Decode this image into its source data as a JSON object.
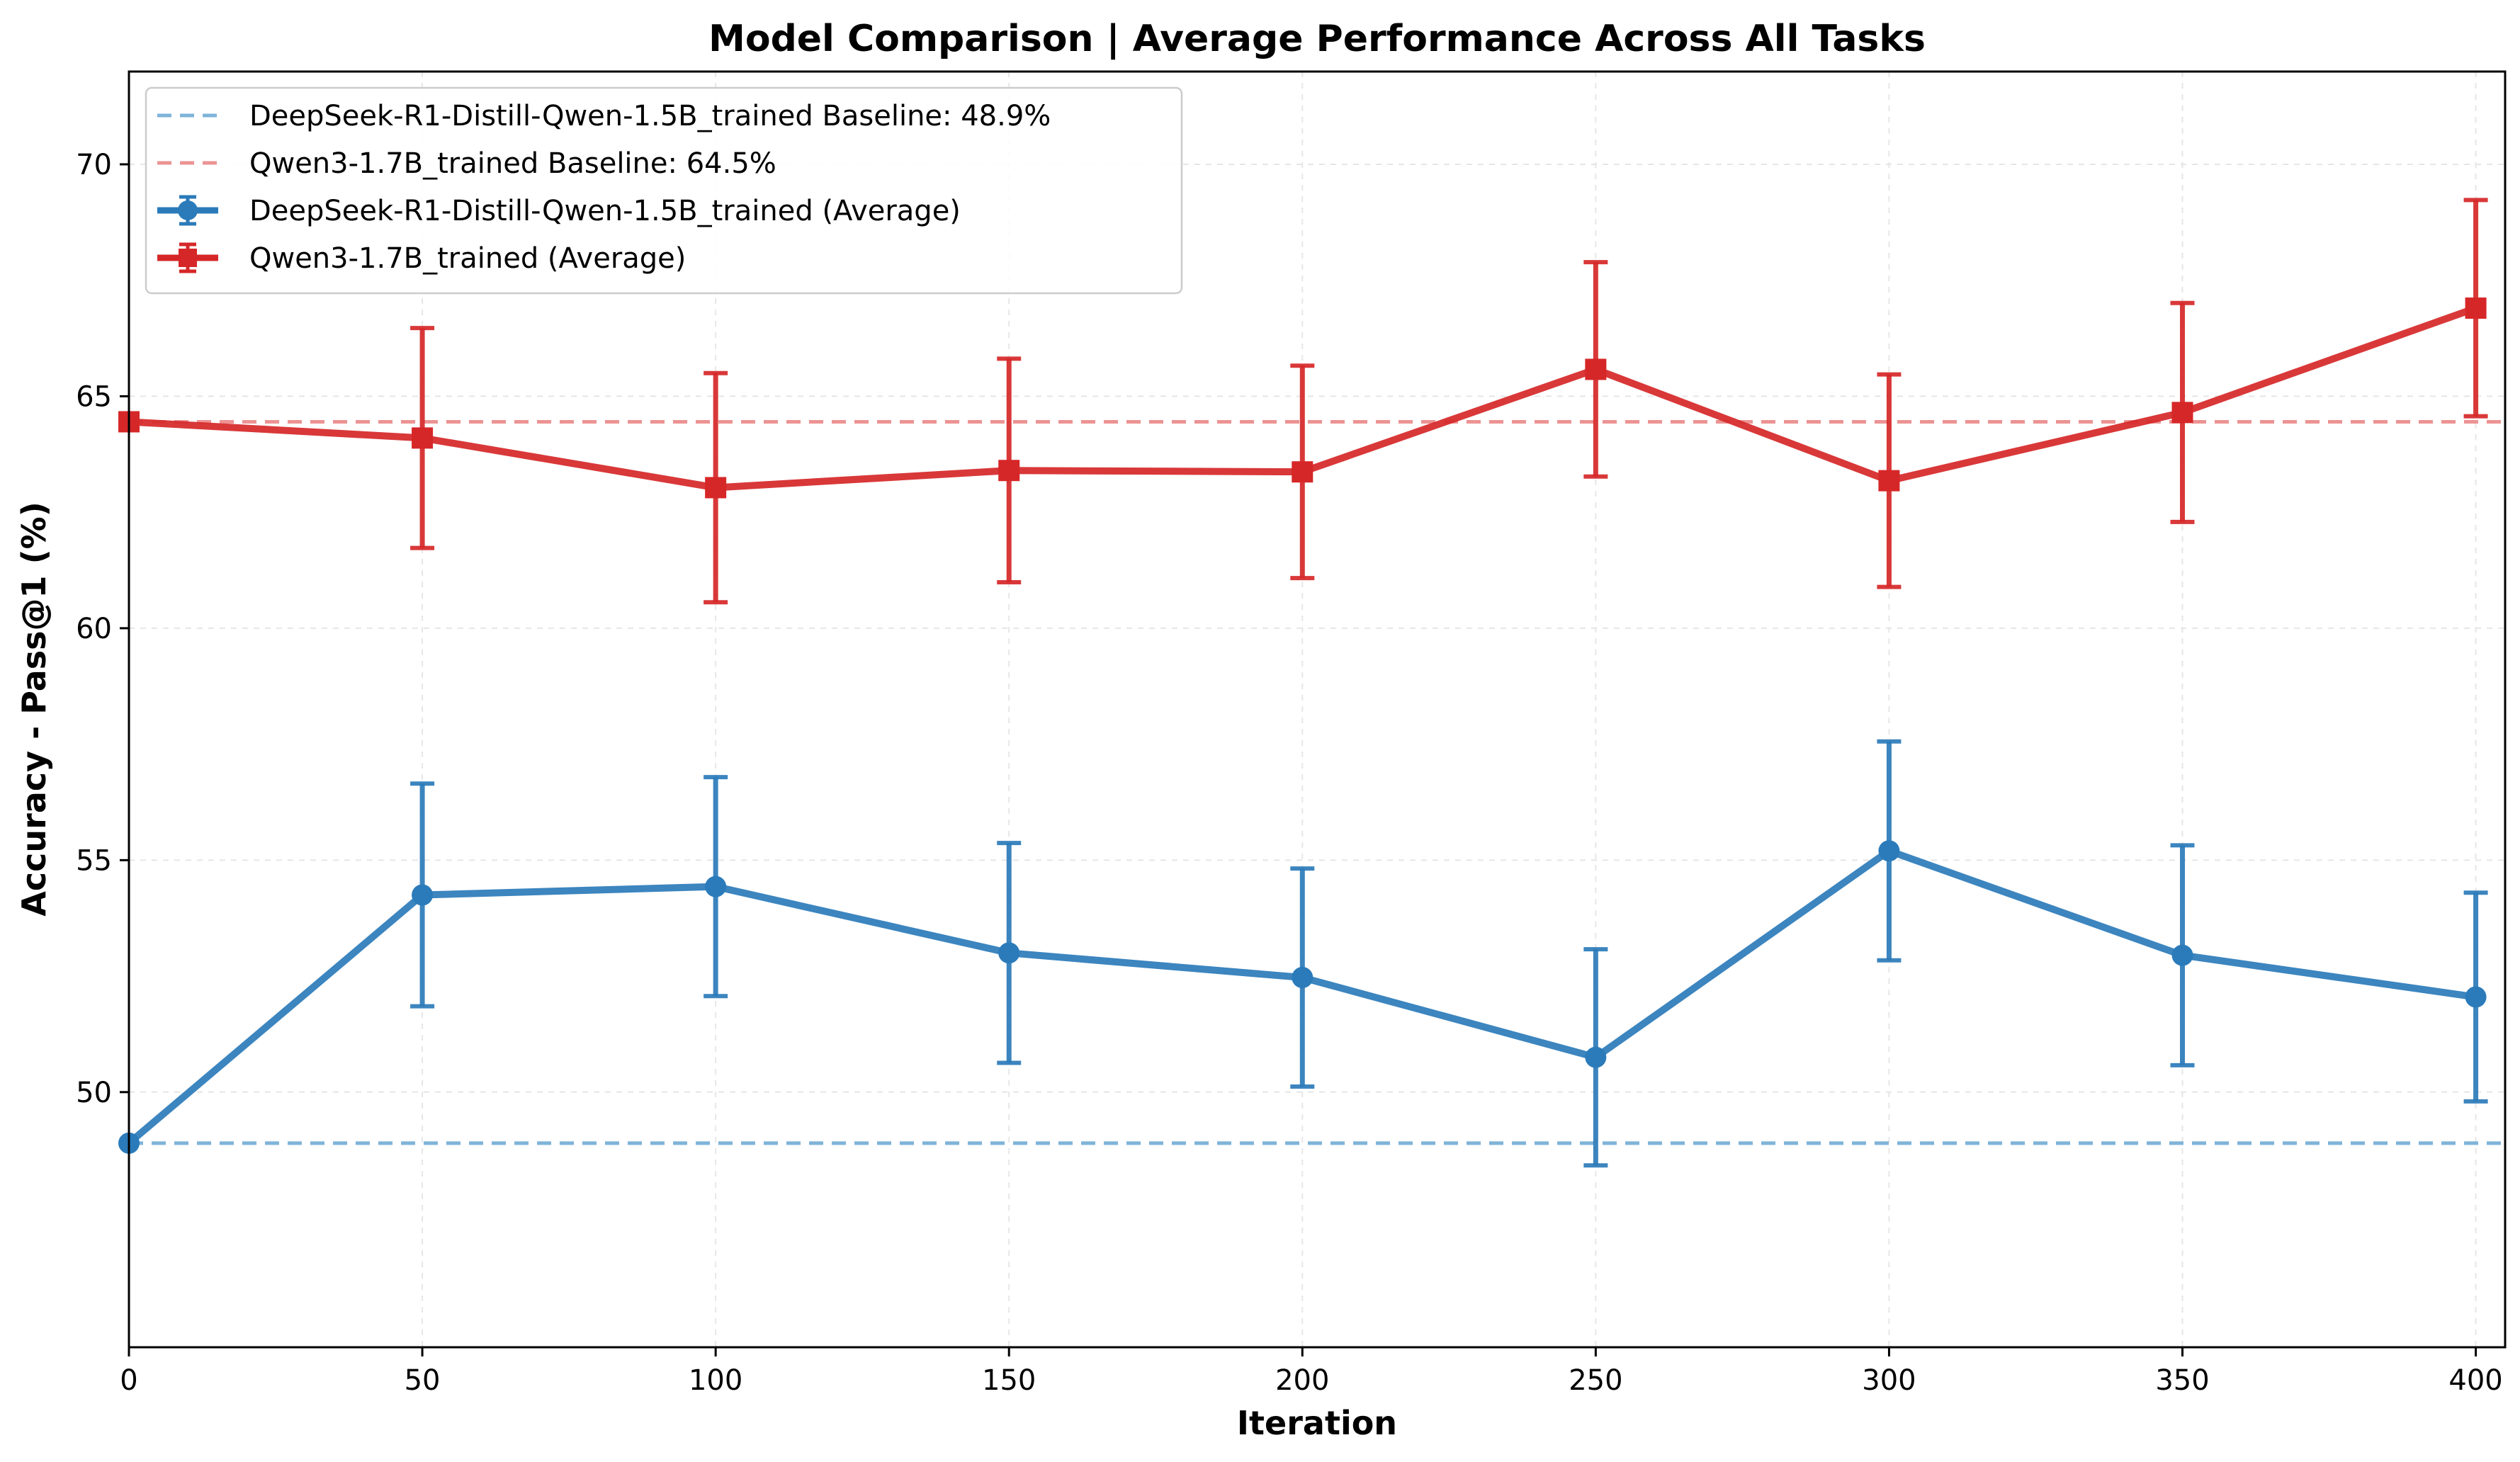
{
  "chart_data": {
    "type": "line",
    "title": "Model Comparison | Average Performance Across All Tasks",
    "xlabel": "Iteration",
    "ylabel": "Accuracy - Pass@1 (%)",
    "xlim": [
      0,
      405
    ],
    "ylim": [
      44.5,
      72.0
    ],
    "x_ticks": [
      0,
      50,
      100,
      150,
      200,
      250,
      300,
      350,
      400
    ],
    "y_ticks": [
      50,
      55,
      60,
      65,
      70
    ],
    "grid": true,
    "legend_position": "top-left",
    "x": [
      0,
      50,
      100,
      150,
      200,
      250,
      300,
      350,
      400
    ],
    "series": [
      {
        "name": "DeepSeek-R1-Distill-Qwen-1.5B_trained (Average)",
        "color": "#2b7bba",
        "marker": "circle",
        "values": [
          48.9,
          54.25,
          54.43,
          53.0,
          52.47,
          50.75,
          55.2,
          52.95,
          52.05
        ],
        "error": [
          null,
          2.4,
          2.36,
          2.37,
          2.35,
          2.33,
          2.36,
          2.37,
          2.25
        ]
      },
      {
        "name": "Qwen3-1.7B_trained (Average)",
        "color": "#d62728",
        "marker": "square",
        "values": [
          64.45,
          64.1,
          63.03,
          63.4,
          63.37,
          65.58,
          63.18,
          64.65,
          66.9
        ],
        "error": [
          null,
          2.37,
          2.47,
          2.41,
          2.29,
          2.31,
          2.29,
          2.36,
          2.33
        ]
      }
    ],
    "baselines": [
      {
        "label": "DeepSeek-R1-Distill-Qwen-1.5B_trained Baseline: 48.9%",
        "value": 48.9,
        "color": "#7fb3d9"
      },
      {
        "label": "Qwen3-1.7B_trained Baseline: 64.5%",
        "value": 64.45,
        "color": "#ec9393"
      }
    ]
  }
}
